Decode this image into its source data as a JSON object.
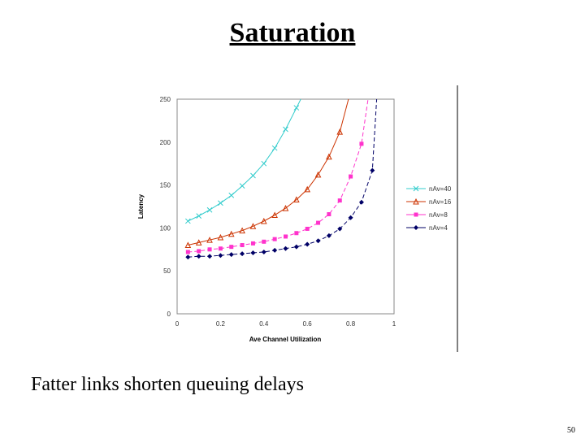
{
  "slide": {
    "title": "Saturation",
    "caption": "Fatter links shorten queuing delays",
    "page_number": "50"
  },
  "chart_data": {
    "type": "line",
    "title": "",
    "xlabel": "Ave Channel Utilization",
    "ylabel": "Latency",
    "xlim": [
      0,
      1
    ],
    "ylim": [
      0,
      250
    ],
    "xticks": [
      0,
      0.2,
      0.4,
      0.6,
      0.8,
      1
    ],
    "xtick_labels": [
      "0",
      "0.2",
      "0.4",
      "0.6",
      "0.8",
      "1"
    ],
    "yticks": [
      0,
      50,
      100,
      150,
      200,
      250
    ],
    "ytick_labels": [
      "0",
      "50",
      "100",
      "150",
      "200",
      "250"
    ],
    "grid": false,
    "legend_position": "right",
    "series": [
      {
        "name": "nAv=40",
        "color": "#33cccc",
        "marker": "x",
        "x": [
          0.05,
          0.1,
          0.15,
          0.2,
          0.25,
          0.3,
          0.35,
          0.4,
          0.45,
          0.5,
          0.55
        ],
        "y": [
          108,
          114,
          121,
          129,
          138,
          149,
          161,
          175,
          193,
          215,
          240
        ],
        "curve_x": [
          0.05,
          0.1,
          0.15,
          0.2,
          0.25,
          0.3,
          0.35,
          0.4,
          0.45,
          0.5,
          0.55,
          0.57
        ],
        "curve_y": [
          108,
          114,
          121,
          129,
          138,
          149,
          161,
          175,
          193,
          215,
          240,
          250
        ]
      },
      {
        "name": "nAv=16",
        "color": "#cc3300",
        "marker": "triangle",
        "x": [
          0.05,
          0.1,
          0.15,
          0.2,
          0.25,
          0.3,
          0.35,
          0.4,
          0.45,
          0.5,
          0.55,
          0.6,
          0.65,
          0.7,
          0.75
        ],
        "y": [
          80,
          83,
          86,
          89,
          93,
          97,
          102,
          108,
          115,
          123,
          133,
          145,
          162,
          183,
          212
        ],
        "curve_x": [
          0.05,
          0.1,
          0.15,
          0.2,
          0.25,
          0.3,
          0.35,
          0.4,
          0.45,
          0.5,
          0.55,
          0.6,
          0.65,
          0.7,
          0.75,
          0.79
        ],
        "curve_y": [
          80,
          83,
          86,
          89,
          93,
          97,
          102,
          108,
          115,
          123,
          133,
          145,
          162,
          183,
          212,
          250
        ]
      },
      {
        "name": "nAv=8",
        "color": "#ff33cc",
        "marker": "square",
        "x": [
          0.05,
          0.1,
          0.15,
          0.2,
          0.25,
          0.3,
          0.35,
          0.4,
          0.45,
          0.5,
          0.55,
          0.6,
          0.65,
          0.7,
          0.75,
          0.8,
          0.85
        ],
        "y": [
          72,
          73,
          75,
          76,
          78,
          80,
          82,
          84,
          87,
          90,
          94,
          99,
          106,
          116,
          132,
          160,
          198
        ],
        "curve_x": [
          0.05,
          0.1,
          0.15,
          0.2,
          0.25,
          0.3,
          0.35,
          0.4,
          0.45,
          0.5,
          0.55,
          0.6,
          0.65,
          0.7,
          0.75,
          0.8,
          0.85,
          0.88
        ],
        "curve_y": [
          72,
          73,
          75,
          76,
          78,
          80,
          82,
          84,
          87,
          90,
          94,
          99,
          106,
          116,
          132,
          160,
          198,
          250
        ]
      },
      {
        "name": "nAv=4",
        "color": "#000066",
        "marker": "diamond",
        "x": [
          0.05,
          0.1,
          0.15,
          0.2,
          0.25,
          0.3,
          0.35,
          0.4,
          0.45,
          0.5,
          0.55,
          0.6,
          0.65,
          0.7,
          0.75,
          0.8,
          0.85,
          0.9
        ],
        "y": [
          66,
          67,
          67,
          68,
          69,
          70,
          71,
          72,
          74,
          76,
          78,
          81,
          85,
          91,
          99,
          112,
          130,
          167
        ],
        "curve_x": [
          0.05,
          0.1,
          0.15,
          0.2,
          0.25,
          0.3,
          0.35,
          0.4,
          0.45,
          0.5,
          0.55,
          0.6,
          0.65,
          0.7,
          0.75,
          0.8,
          0.85,
          0.9,
          0.92
        ],
        "curve_y": [
          66,
          67,
          67,
          68,
          69,
          70,
          71,
          72,
          74,
          76,
          78,
          81,
          85,
          91,
          99,
          112,
          130,
          167,
          250
        ]
      }
    ]
  }
}
